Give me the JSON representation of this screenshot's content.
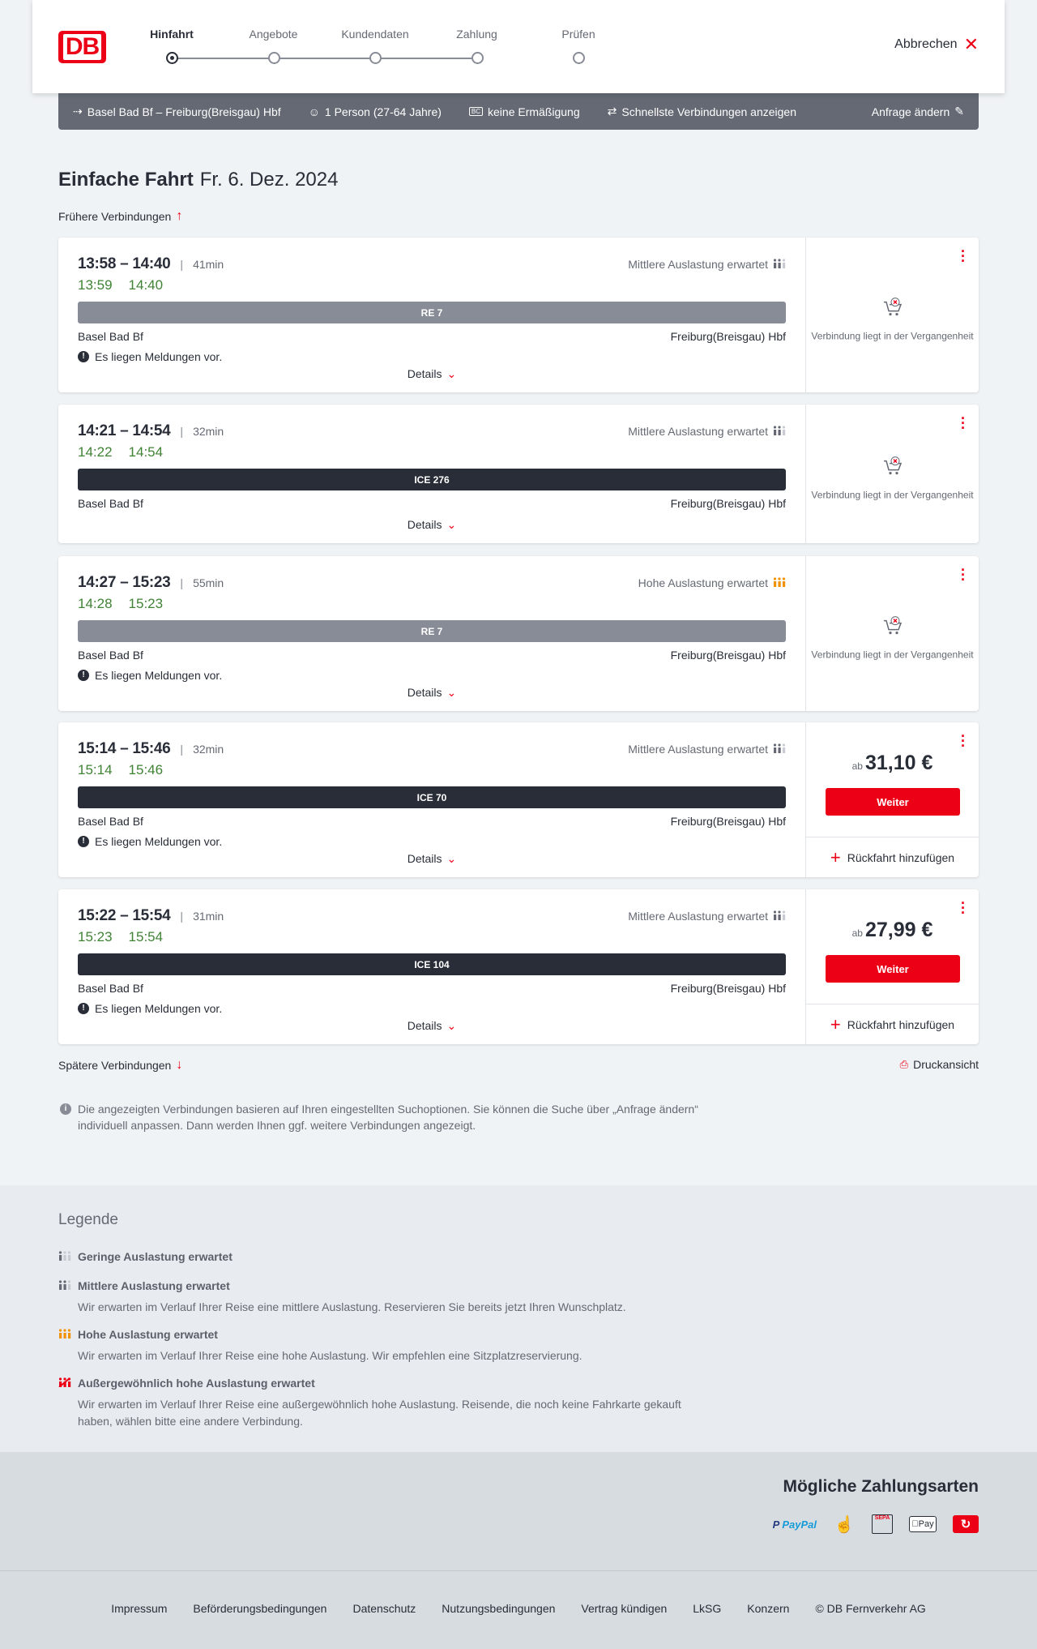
{
  "header": {
    "logo": "DB",
    "steps": [
      "Hinfahrt",
      "Angebote",
      "Kundendaten",
      "Zahlung",
      "Prüfen"
    ],
    "active_step": 0,
    "cancel_label": "Abbrechen"
  },
  "query": {
    "route": "Basel Bad Bf – Freiburg(Breisgau) Hbf",
    "passengers": "1 Person (27-64 Jahre)",
    "discount": "keine Ermäßigung",
    "filter": "Schnellste Verbindungen anzeigen",
    "edit": "Anfrage ändern"
  },
  "page": {
    "title": "Einfache Fahrt",
    "date": "Fr. 6. Dez. 2024",
    "earlier": "Frühere Verbindungen",
    "later": "Spätere Verbindungen",
    "print": "Druckansicht",
    "info": "Die angezeigten Verbindungen basieren auf Ihren eingestellten Suchoptionen. Sie können die Suche über „Anfrage ändern“ individuell anpassen. Dann werden Ihnen ggf. weitere Verbindungen angezeigt."
  },
  "connections": [
    {
      "times": "13:58 – 14:40",
      "duration": "41min",
      "rt_dep": "13:59",
      "rt_arr": "14:40",
      "load": "Mittlere Auslastung erwartet",
      "load_level": "medium",
      "train": "RE 7",
      "train_color": "#878c96",
      "from": "Basel Bad Bf",
      "to": "Freiburg(Breisgau) Hbf",
      "message": "Es liegen Meldungen vor.",
      "details": "Details",
      "status": "Verbindung liegt in der Vergangenheit"
    },
    {
      "times": "14:21 – 14:54",
      "duration": "32min",
      "rt_dep": "14:22",
      "rt_arr": "14:54",
      "load": "Mittlere Auslastung erwartet",
      "load_level": "medium",
      "train": "ICE 276",
      "train_color": "#282d37",
      "from": "Basel Bad Bf",
      "to": "Freiburg(Breisgau) Hbf",
      "details": "Details",
      "status": "Verbindung liegt in der Vergangenheit"
    },
    {
      "times": "14:27 – 15:23",
      "duration": "55min",
      "rt_dep": "14:28",
      "rt_arr": "15:23",
      "load": "Hohe Auslastung erwartet",
      "load_level": "high",
      "train": "RE 7",
      "train_color": "#878c96",
      "from": "Basel Bad Bf",
      "to": "Freiburg(Breisgau) Hbf",
      "message": "Es liegen Meldungen vor.",
      "details": "Details",
      "status": "Verbindung liegt in der Vergangenheit"
    },
    {
      "times": "15:14 – 15:46",
      "duration": "32min",
      "rt_dep": "15:14",
      "rt_arr": "15:46",
      "load": "Mittlere Auslastung erwartet",
      "load_level": "medium",
      "train": "ICE 70",
      "train_color": "#282d37",
      "from": "Basel Bad Bf",
      "to": "Freiburg(Breisgau) Hbf",
      "message": "Es liegen Meldungen vor.",
      "details": "Details",
      "price_prefix": "ab",
      "price": "31,10 €",
      "button": "Weiter",
      "return": "Rückfahrt hinzufügen"
    },
    {
      "times": "15:22 – 15:54",
      "duration": "31min",
      "rt_dep": "15:23",
      "rt_arr": "15:54",
      "load": "Mittlere Auslastung erwartet",
      "load_level": "medium",
      "train": "ICE 104",
      "train_color": "#282d37",
      "from": "Basel Bad Bf",
      "to": "Freiburg(Breisgau) Hbf",
      "message": "Es liegen Meldungen vor.",
      "details": "Details",
      "price_prefix": "ab",
      "price": "27,99 €",
      "button": "Weiter",
      "return": "Rückfahrt hinzufügen"
    }
  ],
  "legend": {
    "title": "Legende",
    "items": [
      {
        "level": "low",
        "title": "Geringe Auslastung erwartet"
      },
      {
        "level": "medium",
        "title": "Mittlere Auslastung erwartet",
        "text": "Wir erwarten im Verlauf Ihrer Reise eine mittlere Auslastung. Reservieren Sie bereits jetzt Ihren Wunschplatz."
      },
      {
        "level": "high",
        "title": "Hohe Auslastung erwartet",
        "text": "Wir erwarten im Verlauf Ihrer Reise eine hohe Auslastung. Wir empfehlen eine Sitzplatzreservierung."
      },
      {
        "level": "extreme",
        "title": "Außergewöhnlich hohe Auslastung erwartet",
        "text": "Wir erwarten im Verlauf Ihrer Reise eine außergewöhnlich hohe Auslastung. Reisende, die noch keine Fahrkarte gekauft haben, wählen bitte eine andere Verbindung."
      }
    ]
  },
  "payment": {
    "title": "Mögliche Zahlungsarten",
    "methods": [
      "PayPal",
      "Kreditkarte",
      "SEPA",
      "Pay",
      "DB Bonus"
    ]
  },
  "footer": {
    "links": [
      "Impressum",
      "Beförderungsbedingungen",
      "Datenschutz",
      "Nutzungsbedingungen",
      "Vertrag kündigen",
      "LkSG",
      "Konzern"
    ],
    "copyright": "© DB Fernverkehr AG"
  },
  "colors": {
    "accent": "#ec0016",
    "realtime": "#408335",
    "high_load": "#f39200",
    "dark": "#282d37"
  }
}
